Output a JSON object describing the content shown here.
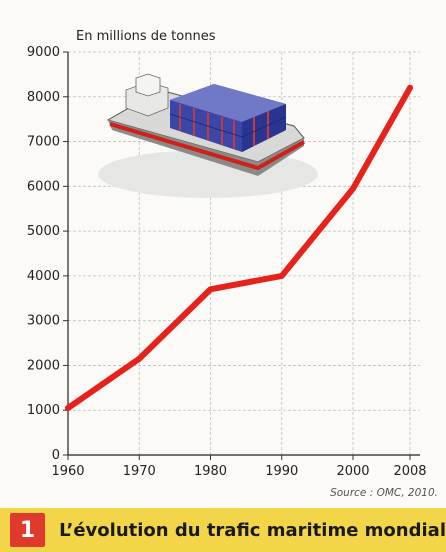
{
  "chart_data": {
    "type": "line",
    "ylabel": "En millions de tonnes",
    "x": [
      1960,
      1970,
      1980,
      1990,
      2000,
      2008
    ],
    "xticks": [
      "1960",
      "1970",
      "1980",
      "1990",
      "2000",
      "2008"
    ],
    "yticks": [
      "0",
      "1000",
      "2000",
      "3000",
      "4000",
      "5000",
      "6000",
      "7000",
      "8000",
      "9000"
    ],
    "series": [
      {
        "values": [
          1050,
          2150,
          3700,
          4000,
          5950,
          8200
        ]
      }
    ],
    "xlim": [
      1960,
      2008
    ],
    "ylim": [
      0,
      9000
    ],
    "grid": true,
    "line_color": "#e5231b"
  },
  "source": "Source : OMC, 2010.",
  "caption": {
    "number": "1",
    "title": "L’évolution du trafic maritime mondial"
  },
  "illustration": "container-ship-icon"
}
